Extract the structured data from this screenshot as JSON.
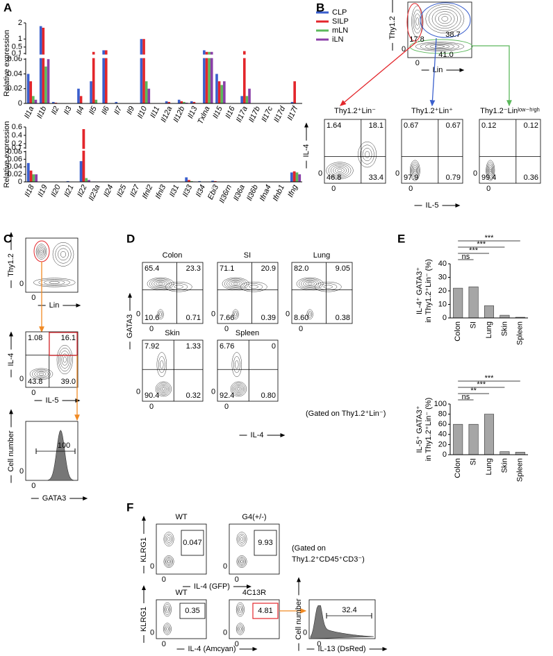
{
  "chart_data": [
    {
      "type": "bar",
      "categories": [
        "Il1a",
        "Il1b",
        "Il2",
        "Il3",
        "Il4",
        "Il5",
        "Il6",
        "Il7",
        "Il9",
        "Il10",
        "Il11",
        "Il12a",
        "Il12b",
        "Il13",
        "Txlna",
        "Il15",
        "Il16",
        "Il17a",
        "Il17b",
        "Il17c",
        "Il17d",
        "Il17f"
      ],
      "series": [
        {
          "name": "CLP",
          "color": "#3a5fcd",
          "values": [
            0.04,
            1.8,
            0.002,
            0,
            0.02,
            0.03,
            0.3,
            0.002,
            0,
            1.0,
            0,
            0.003,
            0.005,
            0.003,
            0.3,
            0.04,
            0,
            0.01,
            0,
            0,
            0,
            0.002
          ]
        },
        {
          "name": "SILP",
          "color": "#e3262b",
          "values": [
            0.03,
            1.7,
            0.001,
            0,
            0.01,
            0.2,
            0.3,
            0,
            0,
            1.0,
            0,
            0.002,
            0.003,
            0.002,
            0.2,
            0.03,
            0,
            0.25,
            0,
            0,
            0,
            0.03
          ]
        },
        {
          "name": "mLN",
          "color": "#5cb85c",
          "values": [
            0.01,
            0.05,
            0,
            0,
            0,
            0.005,
            0,
            0,
            0,
            0.03,
            0,
            0,
            0.002,
            0,
            0.2,
            0.025,
            0,
            0.01,
            0,
            0,
            0,
            0
          ]
        },
        {
          "name": "iLN",
          "color": "#8b3fa8",
          "values": [
            0.005,
            0.06,
            0,
            0,
            0,
            0,
            0,
            0,
            0,
            0.02,
            0,
            0,
            0.001,
            0,
            0.2,
            0.03,
            0,
            0.02,
            0,
            0,
            0,
            0
          ]
        }
      ],
      "y_label": "Relative expression",
      "ylim": [
        0,
        2
      ],
      "y_break": [
        0.06,
        0.1
      ],
      "yticks": [
        0,
        0.02,
        0.04,
        0.06,
        0.1,
        0.5,
        1,
        2
      ],
      "legend": "upper right"
    },
    {
      "type": "bar",
      "categories": [
        "Il18",
        "Il19",
        "Il20",
        "Il21",
        "Il22",
        "Il23a",
        "Il24",
        "Il25",
        "Il27",
        "Ifnl2",
        "Ifnl3",
        "Il31",
        "Il33",
        "Il34",
        "Ebi3",
        "Il36rn",
        "Il36a",
        "Il36b",
        "Ifna4",
        "Ifnb1",
        "Ifng"
      ],
      "series": [
        {
          "name": "CLP",
          "color": "#3a5fcd",
          "values": [
            0.05,
            0.001,
            0,
            0.002,
            0.055,
            0.001,
            0,
            0,
            0,
            0,
            0,
            0,
            0.012,
            0.002,
            0.003,
            0,
            0,
            0,
            0,
            0,
            0.025
          ]
        },
        {
          "name": "SILP",
          "color": "#e3262b",
          "values": [
            0.03,
            0,
            0,
            0,
            0.55,
            0,
            0,
            0,
            0,
            0,
            0,
            0,
            0.005,
            0,
            0.002,
            0,
            0,
            0,
            0,
            0,
            0.028
          ]
        },
        {
          "name": "mLN",
          "color": "#5cb85c",
          "values": [
            0.02,
            0,
            0,
            0,
            0.01,
            0,
            0,
            0,
            0,
            0,
            0,
            0,
            0.002,
            0,
            0,
            0,
            0,
            0,
            0,
            0,
            0.025
          ]
        },
        {
          "name": "iLN",
          "color": "#8b3fa8",
          "values": [
            0.02,
            0,
            0,
            0,
            0.005,
            0,
            0,
            0,
            0,
            0,
            0,
            0,
            0.001,
            0,
            0,
            0,
            0,
            0,
            0,
            0,
            0.02
          ]
        }
      ],
      "y_label": "Relative expression",
      "ylim": [
        0,
        0.6
      ],
      "y_break": [
        0.08,
        0.1
      ],
      "yticks": [
        0,
        0.02,
        0.04,
        0.06,
        0.08,
        0.1,
        0.2,
        0.4,
        0.6
      ]
    },
    {
      "type": "bar",
      "categories": [
        "Colon",
        "SI",
        "Lung",
        "Skin",
        "Spleen"
      ],
      "values": [
        22,
        23,
        9,
        2,
        0.5
      ],
      "color": "#a6a6a6",
      "y_label": [
        "IL-4⁺ GATA3⁺",
        "in Thy1.2⁺Lin⁻ (%)"
      ],
      "ylim": [
        0,
        40
      ],
      "yticks": [
        0,
        10,
        20,
        30,
        40
      ],
      "annotations": [
        "ns",
        "***",
        "***",
        "***"
      ]
    },
    {
      "type": "bar",
      "categories": [
        "Colon",
        "SI",
        "Lung",
        "Skin",
        "Spleen"
      ],
      "values": [
        60,
        60,
        80,
        6,
        5
      ],
      "color": "#a6a6a6",
      "y_label": [
        "IL-5⁺ GATA3⁺",
        "in Thy1.2⁺Lin⁻ (%)"
      ],
      "ylim": [
        0,
        100
      ],
      "yticks": [
        0,
        20,
        40,
        60,
        80,
        100
      ],
      "annotations": [
        "ns",
        "**",
        "***",
        "***"
      ]
    }
  ],
  "panel_labels": [
    "A",
    "B",
    "C",
    "D",
    "E",
    "F"
  ],
  "axis_zero": "0",
  "panel_b": {
    "gate_plot": {
      "y_label": "Thy1.2",
      "x_label": "Lin",
      "gates": [
        "17.8",
        "38.7",
        "41.0"
      ]
    },
    "plots": [
      {
        "title": "Thy1.2⁺Lin⁻",
        "quadrants": [
          "1.64",
          "18.1",
          "46.8",
          "33.4"
        ]
      },
      {
        "title": "Thy1.2⁺Lin⁺",
        "quadrants": [
          "0.67",
          "0.67",
          "97.9",
          "0.79"
        ]
      },
      {
        "title": "Thy1.2⁻Linˡᵒʷ⁻ʰⁱᵍʰ",
        "quadrants": [
          "0.12",
          "0.12",
          "99.4",
          "0.36"
        ]
      }
    ],
    "y_label": "IL-4",
    "x_label": "IL-5"
  },
  "panel_c": {
    "gate_plot": {
      "y_label": "Thy1.2",
      "x_label": "Lin"
    },
    "quad_plot": {
      "y_label": "IL-4",
      "x_label": "IL-5",
      "quadrants": [
        "1.08",
        "16.1",
        "43.8",
        "39.0"
      ]
    },
    "histogram": {
      "y_label": "Cell number",
      "x_label": "GATA3",
      "gate": "100"
    }
  },
  "panel_d": {
    "plots": [
      {
        "title": "Colon",
        "quadrants": [
          "65.4",
          "23.3",
          "10.6",
          "0.71"
        ]
      },
      {
        "title": "SI",
        "quadrants": [
          "71.1",
          "20.9",
          "7.66",
          "0.39"
        ]
      },
      {
        "title": "Lung",
        "quadrants": [
          "82.0",
          "9.05",
          "8.60",
          "0.38"
        ]
      },
      {
        "title": "Skin",
        "quadrants": [
          "7.92",
          "1.33",
          "90.4",
          "0.32"
        ]
      },
      {
        "title": "Spleen",
        "quadrants": [
          "6.76",
          "0",
          "92.4",
          "0.80"
        ]
      }
    ],
    "y_label": "GATA3",
    "x_label": "IL-4",
    "note": "(Gated on Thy1.2⁺Lin⁻)"
  },
  "panel_f": {
    "row1": {
      "plots": [
        {
          "title": "WT",
          "gate": "0.047"
        },
        {
          "title": "G4(+/-)",
          "gate": "9.93"
        }
      ],
      "y_label": "KLRG1",
      "x_label": "IL-4 (GFP)",
      "note": [
        "(Gated on",
        "Thy1.2⁺CD45⁺CD3⁻)"
      ]
    },
    "row2": {
      "plots": [
        {
          "title": "WT",
          "gate": "0.35"
        },
        {
          "title": "4C13R",
          "gate": "4.81"
        }
      ],
      "y_label": "KLRG1",
      "x_label": "IL-4 (Amcyan)",
      "histogram": {
        "y_label": "Cell number",
        "x_label": "IL-13 (DsRed)",
        "gate": "32.4"
      }
    }
  }
}
